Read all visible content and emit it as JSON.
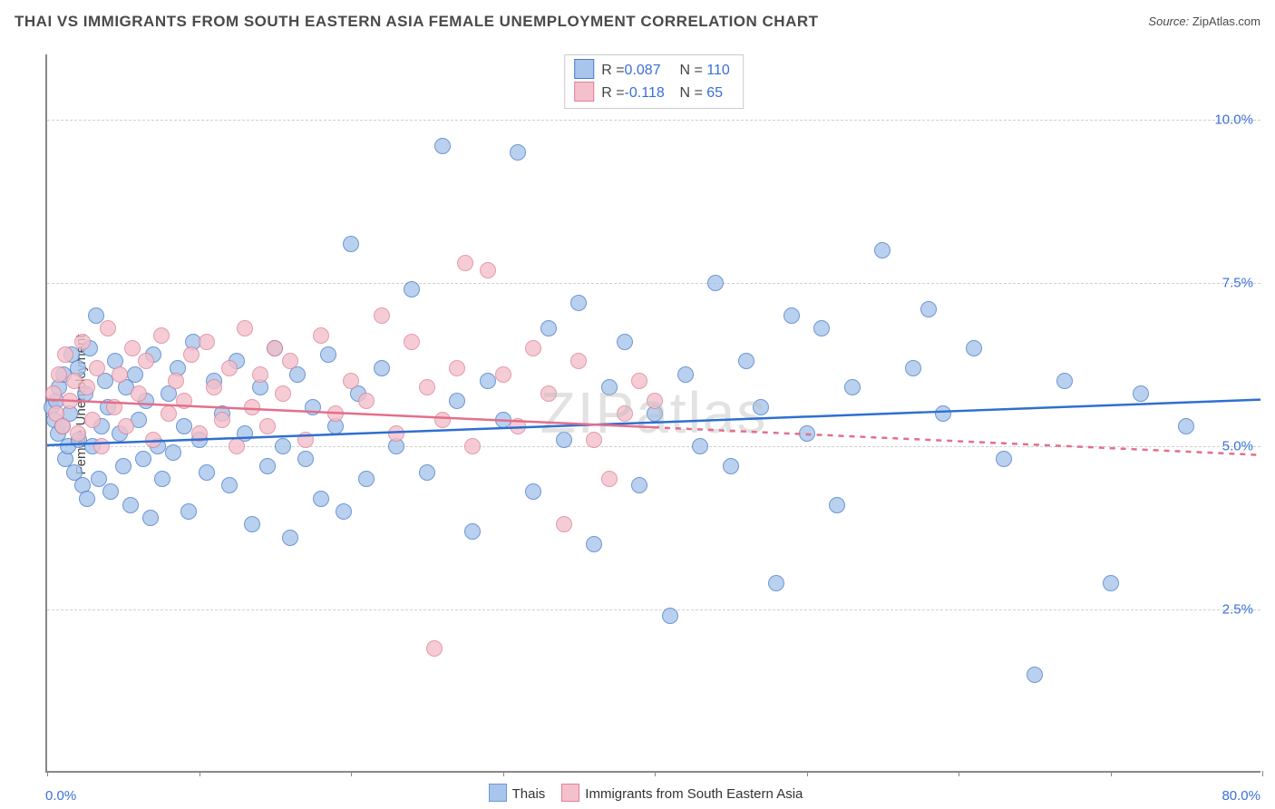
{
  "title": "THAI VS IMMIGRANTS FROM SOUTH EASTERN ASIA FEMALE UNEMPLOYMENT CORRELATION CHART",
  "source_label": "Source:",
  "source_value": "ZipAtlas.com",
  "ylabel": "Female Unemployment",
  "watermark": "ZIPatlas",
  "chart": {
    "type": "scatter",
    "background_color": "#ffffff",
    "grid_color": "#d0d0d0",
    "axis_color": "#888888",
    "xlim": [
      0,
      80
    ],
    "ylim": [
      0,
      11
    ],
    "x_ticks": [
      0,
      10,
      20,
      30,
      40,
      50,
      60,
      70,
      80
    ],
    "x_tick_labels": {
      "0": "0.0%",
      "80": "80.0%"
    },
    "x_tick_color": "#3a6fd8",
    "y_gridlines": [
      2.5,
      5.0,
      7.5,
      10.0
    ],
    "y_tick_labels": {
      "2.5": "2.5%",
      "5.0": "5.0%",
      "7.5": "7.5%",
      "10.0": "10.0%"
    },
    "y_tick_color": "#3a6fd8",
    "marker_radius": 9,
    "marker_stroke_width": 1.2,
    "marker_fill_opacity": 0.35,
    "line_width": 2.5,
    "series": [
      {
        "key": "thais",
        "label": "Thais",
        "fill": "#a8c6ec",
        "stroke": "#4a7dc9",
        "line_color": "#2f6fd0",
        "R": "0.087",
        "N": "110",
        "trend": {
          "y_at_x0": 5.0,
          "y_at_xmax": 5.7,
          "dash_after_x": null
        },
        "points": [
          [
            0.3,
            5.6
          ],
          [
            0.5,
            5.4
          ],
          [
            0.6,
            5.7
          ],
          [
            0.7,
            5.2
          ],
          [
            0.8,
            5.9
          ],
          [
            1.0,
            5.3
          ],
          [
            1.1,
            6.1
          ],
          [
            1.2,
            4.8
          ],
          [
            1.4,
            5.0
          ],
          [
            1.5,
            5.5
          ],
          [
            1.6,
            6.4
          ],
          [
            1.8,
            4.6
          ],
          [
            2.0,
            6.2
          ],
          [
            2.1,
            5.1
          ],
          [
            2.3,
            4.4
          ],
          [
            2.5,
            5.8
          ],
          [
            2.6,
            4.2
          ],
          [
            2.8,
            6.5
          ],
          [
            3.0,
            5.0
          ],
          [
            3.2,
            7.0
          ],
          [
            3.4,
            4.5
          ],
          [
            3.6,
            5.3
          ],
          [
            3.8,
            6.0
          ],
          [
            4.0,
            5.6
          ],
          [
            4.2,
            4.3
          ],
          [
            4.5,
            6.3
          ],
          [
            4.8,
            5.2
          ],
          [
            5.0,
            4.7
          ],
          [
            5.2,
            5.9
          ],
          [
            5.5,
            4.1
          ],
          [
            5.8,
            6.1
          ],
          [
            6.0,
            5.4
          ],
          [
            6.3,
            4.8
          ],
          [
            6.5,
            5.7
          ],
          [
            6.8,
            3.9
          ],
          [
            7.0,
            6.4
          ],
          [
            7.3,
            5.0
          ],
          [
            7.6,
            4.5
          ],
          [
            8.0,
            5.8
          ],
          [
            8.3,
            4.9
          ],
          [
            8.6,
            6.2
          ],
          [
            9.0,
            5.3
          ],
          [
            9.3,
            4.0
          ],
          [
            9.6,
            6.6
          ],
          [
            10.0,
            5.1
          ],
          [
            10.5,
            4.6
          ],
          [
            11.0,
            6.0
          ],
          [
            11.5,
            5.5
          ],
          [
            12.0,
            4.4
          ],
          [
            12.5,
            6.3
          ],
          [
            13.0,
            5.2
          ],
          [
            13.5,
            3.8
          ],
          [
            14.0,
            5.9
          ],
          [
            14.5,
            4.7
          ],
          [
            15.0,
            6.5
          ],
          [
            15.5,
            5.0
          ],
          [
            16.0,
            3.6
          ],
          [
            16.5,
            6.1
          ],
          [
            17.0,
            4.8
          ],
          [
            17.5,
            5.6
          ],
          [
            18.0,
            4.2
          ],
          [
            18.5,
            6.4
          ],
          [
            19.0,
            5.3
          ],
          [
            19.5,
            4.0
          ],
          [
            20.0,
            8.1
          ],
          [
            20.5,
            5.8
          ],
          [
            21.0,
            4.5
          ],
          [
            22.0,
            6.2
          ],
          [
            23.0,
            5.0
          ],
          [
            24.0,
            7.4
          ],
          [
            25.0,
            4.6
          ],
          [
            26.0,
            9.6
          ],
          [
            27.0,
            5.7
          ],
          [
            28.0,
            3.7
          ],
          [
            29.0,
            6.0
          ],
          [
            30.0,
            5.4
          ],
          [
            31.0,
            9.5
          ],
          [
            32.0,
            4.3
          ],
          [
            33.0,
            6.8
          ],
          [
            34.0,
            5.1
          ],
          [
            35.0,
            7.2
          ],
          [
            36.0,
            3.5
          ],
          [
            37.0,
            5.9
          ],
          [
            38.0,
            6.6
          ],
          [
            39.0,
            4.4
          ],
          [
            40.0,
            5.5
          ],
          [
            41.0,
            2.4
          ],
          [
            42.0,
            6.1
          ],
          [
            43.0,
            5.0
          ],
          [
            44.0,
            7.5
          ],
          [
            45.0,
            4.7
          ],
          [
            46.0,
            6.3
          ],
          [
            47.0,
            5.6
          ],
          [
            48.0,
            2.9
          ],
          [
            49.0,
            7.0
          ],
          [
            50.0,
            5.2
          ],
          [
            51.0,
            6.8
          ],
          [
            52.0,
            4.1
          ],
          [
            53.0,
            5.9
          ],
          [
            55.0,
            8.0
          ],
          [
            57.0,
            6.2
          ],
          [
            58.0,
            7.1
          ],
          [
            59.0,
            5.5
          ],
          [
            61.0,
            6.5
          ],
          [
            63.0,
            4.8
          ],
          [
            65.0,
            1.5
          ],
          [
            67.0,
            6.0
          ],
          [
            70.0,
            2.9
          ],
          [
            72.0,
            5.8
          ],
          [
            75.0,
            5.3
          ]
        ]
      },
      {
        "key": "immigrants",
        "label": "Immigrants from South Eastern Asia",
        "fill": "#f3c0cb",
        "stroke": "#e08196",
        "line_color": "#e36f8a",
        "R": "-0.118",
        "N": "65",
        "trend": {
          "y_at_x0": 5.7,
          "y_at_xmax": 4.85,
          "dash_after_x": 40
        },
        "points": [
          [
            0.4,
            5.8
          ],
          [
            0.6,
            5.5
          ],
          [
            0.8,
            6.1
          ],
          [
            1.0,
            5.3
          ],
          [
            1.2,
            6.4
          ],
          [
            1.5,
            5.7
          ],
          [
            1.8,
            6.0
          ],
          [
            2.0,
            5.2
          ],
          [
            2.3,
            6.6
          ],
          [
            2.6,
            5.9
          ],
          [
            3.0,
            5.4
          ],
          [
            3.3,
            6.2
          ],
          [
            3.6,
            5.0
          ],
          [
            4.0,
            6.8
          ],
          [
            4.4,
            5.6
          ],
          [
            4.8,
            6.1
          ],
          [
            5.2,
            5.3
          ],
          [
            5.6,
            6.5
          ],
          [
            6.0,
            5.8
          ],
          [
            6.5,
            6.3
          ],
          [
            7.0,
            5.1
          ],
          [
            7.5,
            6.7
          ],
          [
            8.0,
            5.5
          ],
          [
            8.5,
            6.0
          ],
          [
            9.0,
            5.7
          ],
          [
            9.5,
            6.4
          ],
          [
            10.0,
            5.2
          ],
          [
            10.5,
            6.6
          ],
          [
            11.0,
            5.9
          ],
          [
            11.5,
            5.4
          ],
          [
            12.0,
            6.2
          ],
          [
            12.5,
            5.0
          ],
          [
            13.0,
            6.8
          ],
          [
            13.5,
            5.6
          ],
          [
            14.0,
            6.1
          ],
          [
            14.5,
            5.3
          ],
          [
            15.0,
            6.5
          ],
          [
            15.5,
            5.8
          ],
          [
            16.0,
            6.3
          ],
          [
            17.0,
            5.1
          ],
          [
            18.0,
            6.7
          ],
          [
            19.0,
            5.5
          ],
          [
            20.0,
            6.0
          ],
          [
            21.0,
            5.7
          ],
          [
            22.0,
            7.0
          ],
          [
            23.0,
            5.2
          ],
          [
            24.0,
            6.6
          ],
          [
            25.0,
            5.9
          ],
          [
            26.0,
            5.4
          ],
          [
            27.0,
            6.2
          ],
          [
            28.0,
            5.0
          ],
          [
            29.0,
            7.7
          ],
          [
            30.0,
            6.1
          ],
          [
            31.0,
            5.3
          ],
          [
            32.0,
            6.5
          ],
          [
            33.0,
            5.8
          ],
          [
            34.0,
            3.8
          ],
          [
            35.0,
            6.3
          ],
          [
            36.0,
            5.1
          ],
          [
            37.0,
            4.5
          ],
          [
            38.0,
            5.5
          ],
          [
            39.0,
            6.0
          ],
          [
            40.0,
            5.7
          ],
          [
            25.5,
            1.9
          ],
          [
            27.5,
            7.8
          ]
        ]
      }
    ]
  },
  "bottom_legend": [
    {
      "label": "Thais",
      "fill": "#a8c6ec",
      "stroke": "#6c98d6"
    },
    {
      "label": "Immigrants from South Eastern Asia",
      "fill": "#f3c0cb",
      "stroke": "#e08196"
    }
  ]
}
